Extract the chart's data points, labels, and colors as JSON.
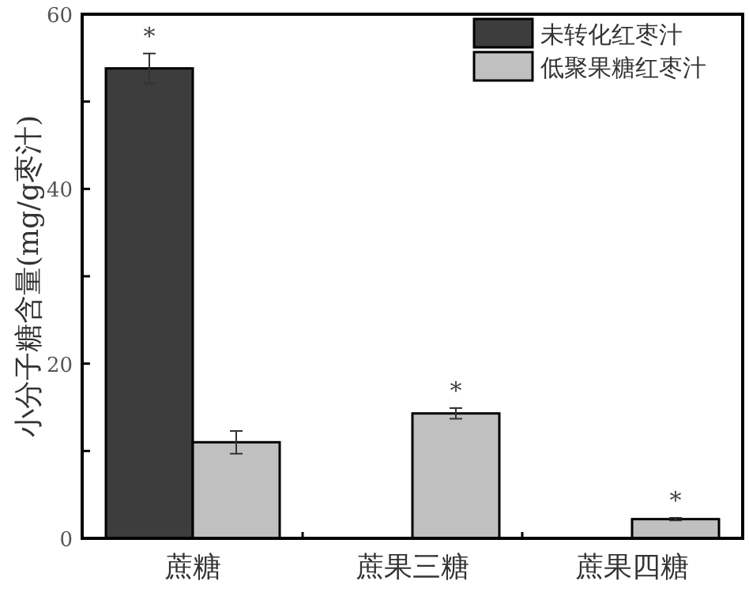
{
  "chart_data": {
    "type": "bar",
    "ylabel": "小分子糖含量(mg/g枣汁)",
    "categories": [
      "蔗糖",
      "蔗果三糖",
      "蔗果四糖"
    ],
    "series": [
      {
        "name": "未转化红枣汁",
        "color": "#3d3d3d",
        "values": [
          53.8,
          null,
          null
        ],
        "errors": [
          1.7,
          null,
          null
        ]
      },
      {
        "name": "低聚果糖红枣汁",
        "color": "#c0c0c0",
        "values": [
          11.0,
          14.3,
          2.2
        ],
        "errors": [
          1.3,
          0.6,
          0.15
        ]
      }
    ],
    "ylim": [
      0,
      60
    ],
    "yticks": [
      0,
      {
        "value": 10,
        "label": null
      },
      20,
      {
        "value": 30,
        "label": null
      },
      40,
      {
        "value": 50,
        "label": null
      },
      60
    ],
    "legend": "top right",
    "annotations": [
      {
        "text": "*",
        "x": "蔗糖",
        "y": 53.8
      },
      {
        "text": "*",
        "x": "蔗果三糖",
        "y": 14.3
      },
      {
        "text": "*",
        "x": "蔗果四糖",
        "y": 2.2
      }
    ]
  }
}
